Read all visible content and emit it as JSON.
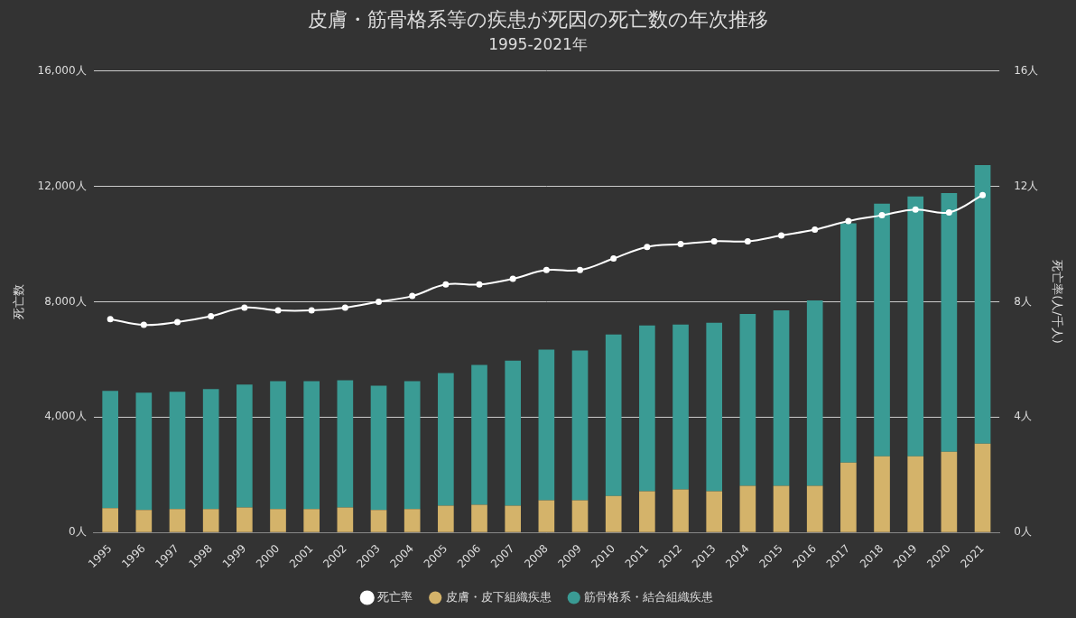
{
  "chart_data": {
    "type": "bar",
    "title": "皮膚・筋骨格系等の疾患が死因の死亡数の年次推移",
    "subtitle": "1995-2021年",
    "ylabel": "死亡数",
    "y2label": "死亡率(人/千人)",
    "categories": [
      "1995",
      "1996",
      "1997",
      "1998",
      "1999",
      "2000",
      "2001",
      "2002",
      "2003",
      "2004",
      "2005",
      "2006",
      "2007",
      "2008",
      "2009",
      "2010",
      "2011",
      "2012",
      "2013",
      "2014",
      "2015",
      "2016",
      "2017",
      "2018",
      "2019",
      "2020",
      "2021"
    ],
    "series": [
      {
        "name": "皮膚・皮下組織疾患",
        "color": "#d4b36a",
        "values": [
          840,
          780,
          810,
          810,
          870,
          810,
          810,
          870,
          780,
          810,
          930,
          960,
          930,
          1120,
          1120,
          1270,
          1430,
          1490,
          1430,
          1620,
          1620,
          1620,
          2420,
          2640,
          2640,
          2800,
          3080
        ]
      },
      {
        "name": "筋骨格系・結合組織疾患",
        "color": "#3a9b94",
        "values": [
          4070,
          4070,
          4070,
          4160,
          4260,
          4440,
          4440,
          4410,
          4310,
          4440,
          4600,
          4850,
          5030,
          5220,
          5190,
          5600,
          5750,
          5720,
          5840,
          5960,
          6080,
          6430,
          8300,
          8760,
          9010,
          8970,
          9660
        ]
      },
      {
        "name": "死亡率",
        "color": "#ffffff",
        "type": "line",
        "axis": "y2",
        "marker": "circle",
        "values": [
          7.4,
          7.2,
          7.3,
          7.5,
          7.8,
          7.7,
          7.7,
          7.8,
          8.0,
          8.2,
          8.6,
          8.6,
          8.8,
          9.1,
          9.1,
          9.5,
          9.9,
          10.0,
          10.1,
          10.1,
          10.3,
          10.5,
          10.8,
          11.0,
          11.2,
          11.1,
          11.7
        ]
      }
    ],
    "ylim": [
      0,
      16000
    ],
    "yticks": [
      {
        "value": 0,
        "label": "0人"
      },
      {
        "value": 4000,
        "label": "4,000人"
      },
      {
        "value": 8000,
        "label": "8,000人"
      },
      {
        "value": 12000,
        "label": "12,000人"
      },
      {
        "value": 16000,
        "label": "16,000人"
      }
    ],
    "y2lim": [
      0,
      16
    ],
    "y2ticks": [
      {
        "value": 0,
        "label": "0人"
      },
      {
        "value": 4,
        "label": "4人"
      },
      {
        "value": 8,
        "label": "8人"
      },
      {
        "value": 12,
        "label": "12人"
      },
      {
        "value": 16,
        "label": "16人"
      }
    ],
    "stacked": true,
    "grid": true,
    "legend": "bottom"
  }
}
